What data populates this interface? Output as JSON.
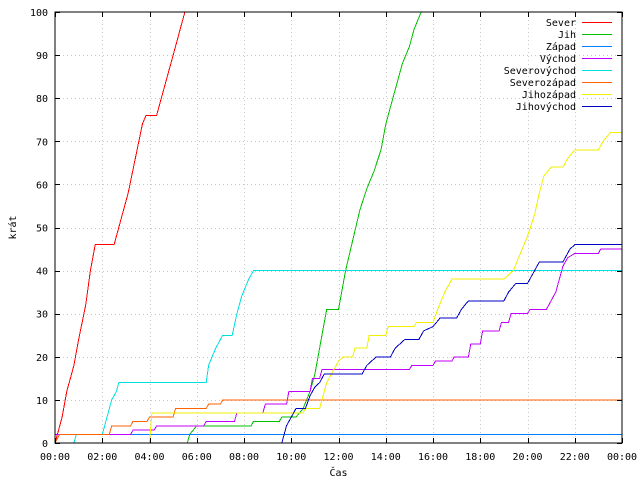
{
  "chart_data": {
    "type": "line",
    "title": "",
    "xlabel": "Čas",
    "ylabel": "krát",
    "xlim": [
      0,
      24
    ],
    "ylim": [
      0,
      100
    ],
    "x_ticks": [
      0,
      2,
      4,
      6,
      8,
      10,
      12,
      14,
      16,
      18,
      20,
      22,
      24
    ],
    "x_tick_labels": [
      "00:00",
      "02:00",
      "04:00",
      "06:00",
      "08:00",
      "10:00",
      "12:00",
      "14:00",
      "16:00",
      "18:00",
      "20:00",
      "22:00",
      "00:00"
    ],
    "y_ticks": [
      0,
      10,
      20,
      30,
      40,
      50,
      60,
      70,
      80,
      90,
      100
    ],
    "y_tick_labels": [
      "0",
      "10",
      "20",
      "30",
      "40",
      "50",
      "60",
      "70",
      "80",
      "90",
      "100"
    ],
    "grid": true,
    "legend_position": "top-right",
    "series": [
      {
        "name": "Sever",
        "color": "#ff0000",
        "points": [
          [
            0,
            0
          ],
          [
            0.1,
            2
          ],
          [
            0.3,
            6
          ],
          [
            0.5,
            12
          ],
          [
            0.8,
            18
          ],
          [
            1.0,
            24
          ],
          [
            1.3,
            32
          ],
          [
            1.5,
            40
          ],
          [
            1.7,
            46
          ],
          [
            2.5,
            46
          ],
          [
            2.8,
            52
          ],
          [
            3.1,
            58
          ],
          [
            3.4,
            66
          ],
          [
            3.7,
            74
          ],
          [
            3.85,
            76
          ],
          [
            4.3,
            76
          ],
          [
            4.6,
            82
          ],
          [
            4.9,
            88
          ],
          [
            5.1,
            92
          ],
          [
            5.3,
            96
          ],
          [
            5.5,
            100
          ]
        ]
      },
      {
        "name": "Jih",
        "color": "#00c000",
        "points": [
          [
            5.6,
            0
          ],
          [
            5.7,
            2
          ],
          [
            6.0,
            4
          ],
          [
            8.3,
            4
          ],
          [
            8.4,
            5
          ],
          [
            9.5,
            5
          ],
          [
            9.6,
            6
          ],
          [
            10.2,
            6
          ],
          [
            10.5,
            8
          ],
          [
            10.8,
            12
          ],
          [
            11.0,
            16
          ],
          [
            11.2,
            22
          ],
          [
            11.4,
            28
          ],
          [
            11.5,
            31
          ],
          [
            12.0,
            31
          ],
          [
            12.3,
            40
          ],
          [
            12.6,
            47
          ],
          [
            12.9,
            54
          ],
          [
            13.2,
            59
          ],
          [
            13.5,
            63
          ],
          [
            13.8,
            68
          ],
          [
            14.0,
            74
          ],
          [
            14.2,
            78
          ],
          [
            14.5,
            84
          ],
          [
            14.7,
            88
          ],
          [
            15.0,
            92
          ],
          [
            15.2,
            96
          ],
          [
            15.5,
            100
          ]
        ]
      },
      {
        "name": "Západ",
        "color": "#0080ff",
        "points": [
          [
            0,
            2
          ],
          [
            24,
            2
          ]
        ]
      },
      {
        "name": "Východ",
        "color": "#c000ff",
        "points": [
          [
            0,
            2
          ],
          [
            3.2,
            2
          ],
          [
            3.3,
            3
          ],
          [
            4.2,
            3
          ],
          [
            4.3,
            4
          ],
          [
            6.3,
            4
          ],
          [
            6.4,
            5
          ],
          [
            7.6,
            5
          ],
          [
            7.7,
            7
          ],
          [
            8.8,
            7
          ],
          [
            8.9,
            9
          ],
          [
            9.8,
            9
          ],
          [
            9.9,
            12
          ],
          [
            10.8,
            12
          ],
          [
            10.9,
            15
          ],
          [
            11.2,
            15
          ],
          [
            11.3,
            17
          ],
          [
            15.0,
            17
          ],
          [
            15.1,
            18
          ],
          [
            16.0,
            18
          ],
          [
            16.1,
            19
          ],
          [
            16.8,
            19
          ],
          [
            16.9,
            20
          ],
          [
            17.5,
            20
          ],
          [
            17.6,
            23
          ],
          [
            18.0,
            23
          ],
          [
            18.1,
            26
          ],
          [
            18.8,
            26
          ],
          [
            18.9,
            28
          ],
          [
            19.2,
            28
          ],
          [
            19.3,
            30
          ],
          [
            20.0,
            30
          ],
          [
            20.1,
            31
          ],
          [
            20.8,
            31
          ],
          [
            21.0,
            33
          ],
          [
            21.2,
            35
          ],
          [
            21.5,
            41
          ],
          [
            21.7,
            43
          ],
          [
            22.0,
            44
          ],
          [
            23.0,
            44
          ],
          [
            23.1,
            45
          ],
          [
            24,
            45
          ]
        ]
      },
      {
        "name": "Severovýchod",
        "color": "#00e0e0",
        "points": [
          [
            0,
            0
          ],
          [
            0.8,
            0
          ],
          [
            0.9,
            2
          ],
          [
            2.0,
            2
          ],
          [
            2.2,
            6
          ],
          [
            2.4,
            10
          ],
          [
            2.6,
            12
          ],
          [
            2.7,
            14
          ],
          [
            6.4,
            14
          ],
          [
            6.5,
            18
          ],
          [
            6.8,
            22
          ],
          [
            7.1,
            25
          ],
          [
            7.5,
            25
          ],
          [
            7.7,
            30
          ],
          [
            7.9,
            34
          ],
          [
            8.2,
            38
          ],
          [
            8.4,
            40
          ],
          [
            24,
            40
          ]
        ]
      },
      {
        "name": "Severozápad",
        "color": "#ff6000",
        "points": [
          [
            0,
            0
          ],
          [
            0.2,
            2
          ],
          [
            2.3,
            2
          ],
          [
            2.4,
            4
          ],
          [
            3.2,
            4
          ],
          [
            3.3,
            5
          ],
          [
            3.9,
            5
          ],
          [
            4.0,
            6
          ],
          [
            5.0,
            6
          ],
          [
            5.1,
            8
          ],
          [
            6.4,
            8
          ],
          [
            6.5,
            9
          ],
          [
            7.0,
            9
          ],
          [
            7.1,
            10
          ],
          [
            24,
            10
          ]
        ]
      },
      {
        "name": "Jihozápad",
        "color": "#f0f000",
        "points": [
          [
            0,
            0
          ],
          [
            4.0,
            0
          ],
          [
            4.1,
            7
          ],
          [
            10.5,
            7
          ],
          [
            10.6,
            8
          ],
          [
            11.2,
            8
          ],
          [
            11.5,
            14
          ],
          [
            11.8,
            17
          ],
          [
            12.0,
            19
          ],
          [
            12.2,
            20
          ],
          [
            12.6,
            20
          ],
          [
            12.7,
            22
          ],
          [
            13.2,
            22
          ],
          [
            13.3,
            25
          ],
          [
            14.0,
            25
          ],
          [
            14.1,
            27
          ],
          [
            15.2,
            27
          ],
          [
            15.3,
            28
          ],
          [
            16.0,
            28
          ],
          [
            16.2,
            31
          ],
          [
            16.5,
            35
          ],
          [
            16.8,
            38
          ],
          [
            19.0,
            38
          ],
          [
            19.4,
            40
          ],
          [
            19.7,
            44
          ],
          [
            20.0,
            48
          ],
          [
            20.3,
            53
          ],
          [
            20.5,
            58
          ],
          [
            20.7,
            62
          ],
          [
            21.0,
            64
          ],
          [
            21.5,
            64
          ],
          [
            21.7,
            66
          ],
          [
            22.0,
            68
          ],
          [
            23.0,
            68
          ],
          [
            23.2,
            70
          ],
          [
            23.5,
            72
          ],
          [
            24,
            72
          ]
        ]
      },
      {
        "name": "Jihovýchod",
        "color": "#0000c0",
        "points": [
          [
            0,
            0
          ],
          [
            9.6,
            0
          ],
          [
            9.8,
            4
          ],
          [
            10.0,
            6
          ],
          [
            10.2,
            8
          ],
          [
            10.6,
            8
          ],
          [
            10.8,
            11
          ],
          [
            11.0,
            13
          ],
          [
            11.2,
            14
          ],
          [
            11.4,
            16
          ],
          [
            13.0,
            16
          ],
          [
            13.2,
            18
          ],
          [
            13.6,
            20
          ],
          [
            14.2,
            20
          ],
          [
            14.4,
            22
          ],
          [
            14.8,
            24
          ],
          [
            15.4,
            24
          ],
          [
            15.6,
            26
          ],
          [
            16.0,
            27
          ],
          [
            16.3,
            29
          ],
          [
            17.0,
            29
          ],
          [
            17.2,
            31
          ],
          [
            17.5,
            33
          ],
          [
            19.0,
            33
          ],
          [
            19.2,
            35
          ],
          [
            19.5,
            37
          ],
          [
            20.0,
            37
          ],
          [
            20.2,
            39
          ],
          [
            20.5,
            42
          ],
          [
            21.5,
            42
          ],
          [
            21.8,
            45
          ],
          [
            22.0,
            46
          ],
          [
            24,
            46
          ]
        ]
      }
    ]
  }
}
